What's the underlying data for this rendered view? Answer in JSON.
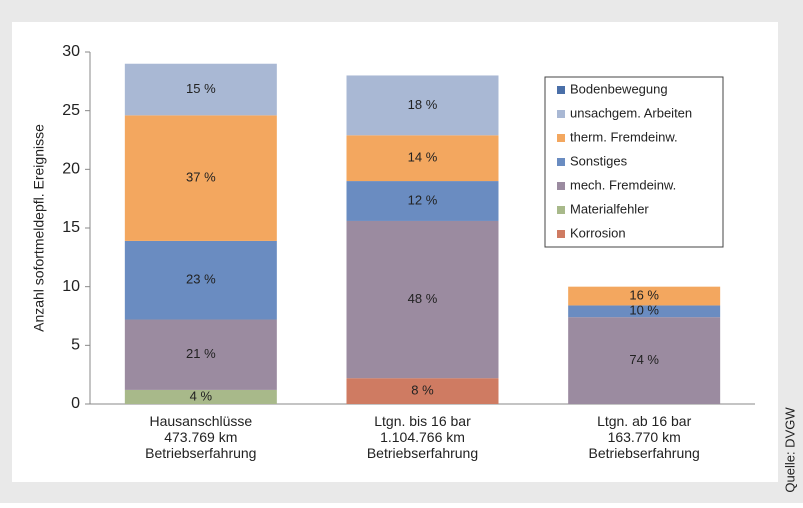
{
  "chart_data": {
    "type": "stacked-bar",
    "y_label": "Anzahl sofortmeldepfl. Ereignisse",
    "source": "Quelle: DVGW",
    "categories": [
      "Hausanschlüsse\n473.769 km\nBetriebserfahrung",
      "Ltgn. bis 16 bar\n1.104.766 km\nBetriebserfahrung",
      "Ltgn. ab 16 bar\n163.770 km\nBetriebserfahrung"
    ],
    "ylim": [
      0,
      30
    ],
    "yticks": [
      0,
      5,
      10,
      15,
      20,
      25,
      30
    ],
    "grid": false,
    "legend": "upper right",
    "series": [
      {
        "name": "Korrosion",
        "color": "#cf7b62",
        "values": [
          null,
          2.2,
          null
        ],
        "value_labels": [
          null,
          "8 %",
          null
        ]
      },
      {
        "name": "Materialfehler",
        "color": "#a8b98a",
        "values": [
          1.2,
          null,
          null
        ],
        "value_labels": [
          "4 %",
          null,
          null
        ]
      },
      {
        "name": "mech. Fremdeinw.",
        "color": "#9b8ba0",
        "values": [
          6.0,
          13.4,
          7.4
        ],
        "value_labels": [
          "21 %",
          "48 %",
          "74 %"
        ]
      },
      {
        "name": "Sonstiges",
        "color": "#6a8cc1",
        "values": [
          6.7,
          3.4,
          1.0
        ],
        "value_labels": [
          "23 %",
          "12 %",
          "10 %"
        ]
      },
      {
        "name": "therm. Fremdeinw.",
        "color": "#f3a75f",
        "values": [
          10.7,
          3.9,
          1.6
        ],
        "value_labels": [
          "37 %",
          "14 %",
          "16 %"
        ]
      },
      {
        "name": "unsachgem. Arbeiten",
        "color": "#a9b8d4",
        "values": [
          4.4,
          5.1,
          null
        ],
        "value_labels": [
          "15 %",
          "18 %",
          null
        ]
      },
      {
        "name": "Bodenbewegung",
        "color": "#4a6fa8",
        "values": [
          null,
          null,
          null
        ],
        "value_labels": [
          null,
          null,
          null
        ]
      }
    ]
  }
}
